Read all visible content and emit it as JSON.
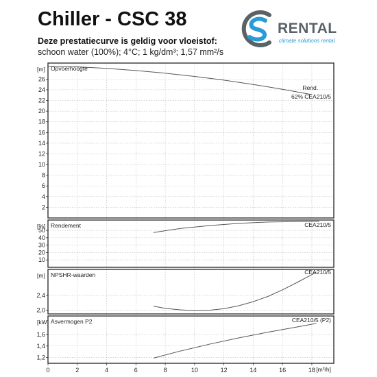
{
  "header": {
    "title": "Chiller - CSC 38",
    "subtitle": "Deze prestatiecurve is geldig voor vloeistof:",
    "conditions": "schoon water (100%); 4°C; 1 kg/dm³; 1,57 mm²/s"
  },
  "logo": {
    "word": "RENTAL",
    "tagline": "climate solutions rental",
    "colors": {
      "blue": "#2a9bd6",
      "grey": "#5a6268"
    }
  },
  "chart_data": {
    "type": "line",
    "x_axis": {
      "unit": "[m³/h]",
      "range": [
        0,
        19.5
      ],
      "ticks": [
        "0",
        "2",
        "4",
        "6",
        "8",
        "10",
        "12",
        "14",
        "16",
        "18"
      ],
      "tick_values": [
        0,
        2,
        4,
        6,
        8,
        10,
        12,
        14,
        16,
        18
      ]
    },
    "grid": true,
    "panels": [
      {
        "name": "Opvoerhoogte",
        "unit": "[m]",
        "ylim": [
          0,
          29
        ],
        "ticks": [
          "2",
          "4",
          "6",
          "8",
          "10",
          "12",
          "14",
          "16",
          "18",
          "20",
          "22",
          "24",
          "26"
        ],
        "tick_values": [
          2,
          4,
          6,
          8,
          10,
          12,
          14,
          16,
          18,
          20,
          22,
          24,
          26
        ],
        "series": [
          {
            "name": "CEA210/5",
            "x": [
              0,
              2,
              4,
              6,
              8,
              10,
              12,
              14,
              16,
              18
            ],
            "y": [
              28.4,
              28.3,
              28.0,
              27.6,
              27.1,
              26.5,
              25.8,
              25.0,
              24.1,
              23.1
            ]
          }
        ],
        "annotations": [
          {
            "text": "Rend.",
            "x": 17.9,
            "y": 24.0
          },
          {
            "text": "62%",
            "x": 17.0,
            "y": 22.3
          }
        ]
      },
      {
        "name": "Rendement",
        "unit": "[%]",
        "ylim": [
          0,
          64
        ],
        "ticks": [
          "10",
          "20",
          "30",
          "40",
          "50"
        ],
        "tick_values": [
          10,
          20,
          30,
          40,
          50
        ],
        "series": [
          {
            "name": "CEA210/5",
            "x": [
              7.2,
              9,
              11,
              13,
              15,
              17,
              18.5
            ],
            "y": [
              47,
              52.5,
              56.5,
              59.5,
              61.3,
              62.0,
              62.2
            ]
          }
        ]
      },
      {
        "name": "NPSHR-waarden",
        "unit": "[m]",
        "ylim": [
          1.9,
          3.1
        ],
        "ticks": [
          "2,0",
          "2,4"
        ],
        "tick_values": [
          2.0,
          2.4
        ],
        "series": [
          {
            "name": "CEA210/5",
            "x": [
              7.2,
              8,
              9,
              10,
              11,
              12,
              13,
              14,
              15,
              16,
              17,
              18.3
            ],
            "y": [
              2.11,
              2.05,
              2.01,
              1.99,
              2.0,
              2.04,
              2.12,
              2.23,
              2.37,
              2.55,
              2.75,
              3.02
            ]
          }
        ]
      },
      {
        "name": "Asvermogen P2",
        "unit": "[kW]",
        "ylim": [
          1.1,
          1.92
        ],
        "ticks": [
          "1,2",
          "1,4",
          "1,6"
        ],
        "tick_values": [
          1.2,
          1.4,
          1.6
        ],
        "series": [
          {
            "name": "CEA210/5 (P2)",
            "x": [
              7.2,
              9,
              11,
              13,
              15,
              17,
              18.3
            ],
            "y": [
              1.19,
              1.31,
              1.43,
              1.54,
              1.64,
              1.73,
              1.79
            ]
          }
        ]
      }
    ]
  }
}
